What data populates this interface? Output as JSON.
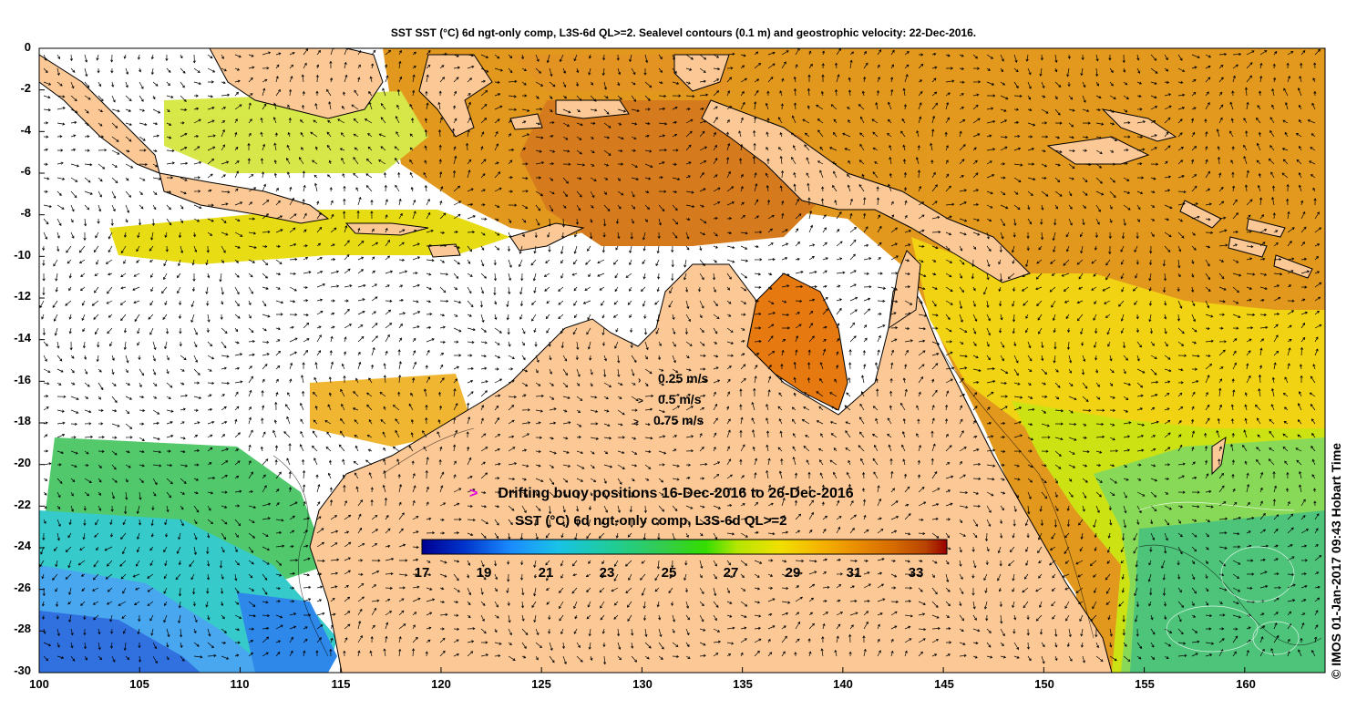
{
  "title": "SST SST (°C) 6d ngt-only comp, L3S-6d QL>=2. Sealevel contours (0.1 m) and geostrophic velocity: 22-Dec-2016.",
  "credit": "© IMOS 01-Jan-2017 09:43 Hobart Time",
  "map": {
    "lon_range": [
      100,
      164
    ],
    "lat_range": [
      -30,
      0
    ],
    "land_color": "#fcc996",
    "ocean_color": "#ffffff",
    "x_ticks": [
      "100",
      "105",
      "110",
      "115",
      "120",
      "125",
      "130",
      "135",
      "140",
      "145",
      "150",
      "155",
      "160"
    ],
    "y_ticks": [
      "0",
      "-2",
      "-4",
      "-6",
      "-8",
      "-10",
      "-12",
      "-14",
      "-16",
      "-18",
      "-20",
      "-22",
      "-24",
      "-26",
      "-28",
      "-30"
    ]
  },
  "velocity_legend": [
    {
      "label": "0.25 m/s",
      "marker": "›"
    },
    {
      "label": "0.5 m/s",
      "marker": ">"
    },
    {
      "label": "0.75 m/s",
      "marker": ">"
    }
  ],
  "buoy_legend": {
    "marker": ">",
    "label": "Drifting buoy positions 16-Dec-2016 to 26-Dec-2016",
    "marker_color": "#e000e0"
  },
  "colorbar": {
    "title": "SST (°C) 6d ngt-only comp, L3S-6d QL>=2",
    "range": [
      17,
      34
    ],
    "ticks": [
      "17",
      "19",
      "21",
      "23",
      "25",
      "27",
      "29",
      "31",
      "33"
    ],
    "colors": [
      "#00008f",
      "#0033cc",
      "#1a8cff",
      "#19c2e6",
      "#1fcc99",
      "#33cc4d",
      "#33dd00",
      "#b3e600",
      "#f0e000",
      "#f5b300",
      "#e88c00",
      "#d46a00",
      "#b84300",
      "#990000"
    ]
  }
}
